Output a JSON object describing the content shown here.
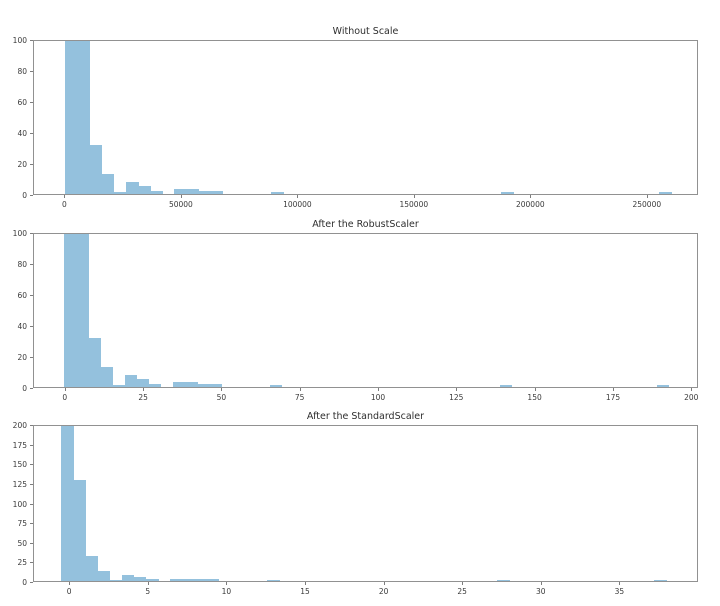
{
  "figure": {
    "background_color": "#ffffff",
    "bar_color": "#94c1dd",
    "spine_color": "#919191",
    "text_color": "#2e2e2e"
  },
  "chart_data": [
    {
      "type": "bar",
      "subtype": "histogram",
      "title": "Without Scale",
      "bin_start": 0,
      "bin_width": 5200,
      "bin_counts": [
        200,
        130,
        32,
        13,
        1,
        8,
        5,
        2,
        0,
        3,
        3,
        2,
        2,
        0,
        0,
        0,
        0,
        1,
        0,
        0,
        0,
        0,
        0,
        0,
        0,
        0,
        0,
        0,
        0,
        0,
        0,
        0,
        0,
        0,
        0,
        0,
        1,
        0,
        0,
        0,
        0,
        0,
        0,
        0,
        0,
        0,
        0,
        0,
        0,
        1
      ],
      "xlim": [
        -13500,
        272000
      ],
      "ylim": [
        0,
        100
      ],
      "xticks": [
        0,
        50000,
        100000,
        150000,
        200000,
        250000
      ],
      "xtick_labels": [
        "0",
        "50000",
        "100000",
        "150000",
        "200000",
        "250000"
      ],
      "yticks": [
        0,
        20,
        40,
        60,
        80,
        100
      ],
      "ytick_labels": [
        "0",
        "20",
        "40",
        "60",
        "80",
        "100"
      ],
      "grid": false,
      "legend": null
    },
    {
      "type": "bar",
      "subtype": "histogram",
      "title": "After the RobustScaler",
      "bin_start": -0.5,
      "bin_width": 3.86,
      "bin_counts": [
        200,
        130,
        32,
        13,
        1,
        8,
        5,
        2,
        0,
        3,
        3,
        2,
        2,
        0,
        0,
        0,
        0,
        1,
        0,
        0,
        0,
        0,
        0,
        0,
        0,
        0,
        0,
        0,
        0,
        0,
        0,
        0,
        0,
        0,
        0,
        0,
        1,
        0,
        0,
        0,
        0,
        0,
        0,
        0,
        0,
        0,
        0,
        0,
        0,
        1
      ],
      "xlim": [
        -10.15,
        202.15
      ],
      "ylim": [
        0,
        100
      ],
      "xticks": [
        0,
        25,
        50,
        75,
        100,
        125,
        150,
        175,
        200
      ],
      "xtick_labels": [
        "0",
        "25",
        "50",
        "75",
        "100",
        "125",
        "150",
        "175",
        "200"
      ],
      "yticks": [
        0,
        20,
        40,
        60,
        80,
        100
      ],
      "ytick_labels": [
        "0",
        "20",
        "40",
        "60",
        "80",
        "100"
      ],
      "grid": false,
      "legend": null
    },
    {
      "type": "bar",
      "subtype": "histogram",
      "title": "After the StandardScaler",
      "bin_start": -0.57,
      "bin_width": 0.77,
      "bin_counts": [
        200,
        130,
        32,
        13,
        1,
        8,
        5,
        2,
        0,
        3,
        3,
        2,
        2,
        0,
        0,
        0,
        0,
        1,
        0,
        0,
        0,
        0,
        0,
        0,
        0,
        0,
        0,
        0,
        0,
        0,
        0,
        0,
        0,
        0,
        0,
        0,
        1,
        0,
        0,
        0,
        0,
        0,
        0,
        0,
        0,
        0,
        0,
        0,
        0,
        1
      ],
      "xlim": [
        -2.3,
        40.0
      ],
      "ylim": [
        0,
        200
      ],
      "xticks": [
        0,
        5,
        10,
        15,
        20,
        25,
        30,
        35
      ],
      "xtick_labels": [
        "0",
        "5",
        "10",
        "15",
        "20",
        "25",
        "30",
        "35"
      ],
      "yticks": [
        0,
        25,
        50,
        75,
        100,
        125,
        150,
        175,
        200
      ],
      "ytick_labels": [
        "0",
        "25",
        "50",
        "75",
        "100",
        "125",
        "150",
        "175",
        "200"
      ],
      "grid": false,
      "legend": null
    }
  ]
}
